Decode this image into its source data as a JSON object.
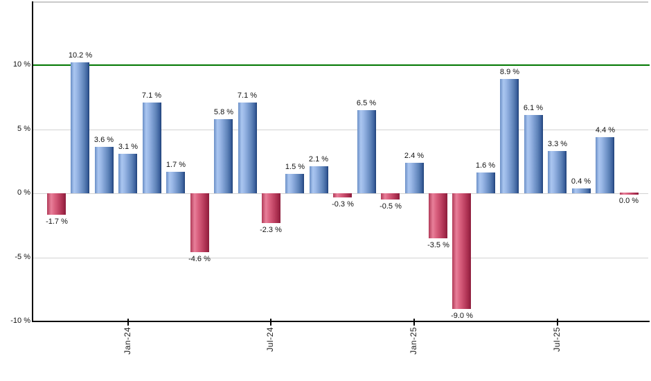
{
  "chart_data": {
    "type": "bar",
    "title": "",
    "unit": "%",
    "values": [
      -1.7,
      10.2,
      3.6,
      3.1,
      7.1,
      1.7,
      -4.6,
      5.8,
      7.1,
      -2.3,
      1.5,
      2.1,
      -0.3,
      6.5,
      -0.5,
      2.4,
      -3.5,
      -9.0,
      1.6,
      8.9,
      6.1,
      3.3,
      0.4,
      4.4,
      0.0
    ],
    "bar_labels": [
      "-1.7 %",
      "10.2 %",
      "3.6 %",
      "3.1 %",
      "7.1 %",
      "1.7 %",
      "-4.6 %",
      "5.8 %",
      "7.1 %",
      "-2.3 %",
      "1.5 %",
      "2.1 %",
      "-0.3 %",
      "6.5 %",
      "-0.5 %",
      "2.4 %",
      "-3.5 %",
      "-9.0 %",
      "1.6 %",
      "8.9 %",
      "6.1 %",
      "3.3 %",
      "0.4 %",
      "4.4 %",
      "0.0 %"
    ],
    "x_tick_labels": [
      {
        "label": "Jan-24",
        "bar_index": 3
      },
      {
        "label": "Jul-24",
        "bar_index": 9
      },
      {
        "label": "Jan-25",
        "bar_index": 15
      },
      {
        "label": "Jul-25",
        "bar_index": 21
      }
    ],
    "y_tick_labels": [
      "10 %",
      "5 %",
      "0 %",
      "-5 %",
      "-10 %"
    ],
    "y_tick_values": [
      10,
      5,
      0,
      -5,
      -10
    ],
    "ylim": [
      -10,
      15
    ],
    "gridline_values": [
      5,
      0,
      -5
    ],
    "reference_line": {
      "value": 10,
      "color": "#007700"
    },
    "colors": {
      "positive_bar": "#7d9ed2",
      "positive_bar_edge": "#1d3f76",
      "negative_bar": "#c64a6a",
      "negative_bar_edge": "#8c1c3c",
      "grid": "#d2d2d2",
      "frame": "#c9c9c9",
      "axis": "#000000",
      "label_text": "#111111"
    },
    "legend": null
  }
}
